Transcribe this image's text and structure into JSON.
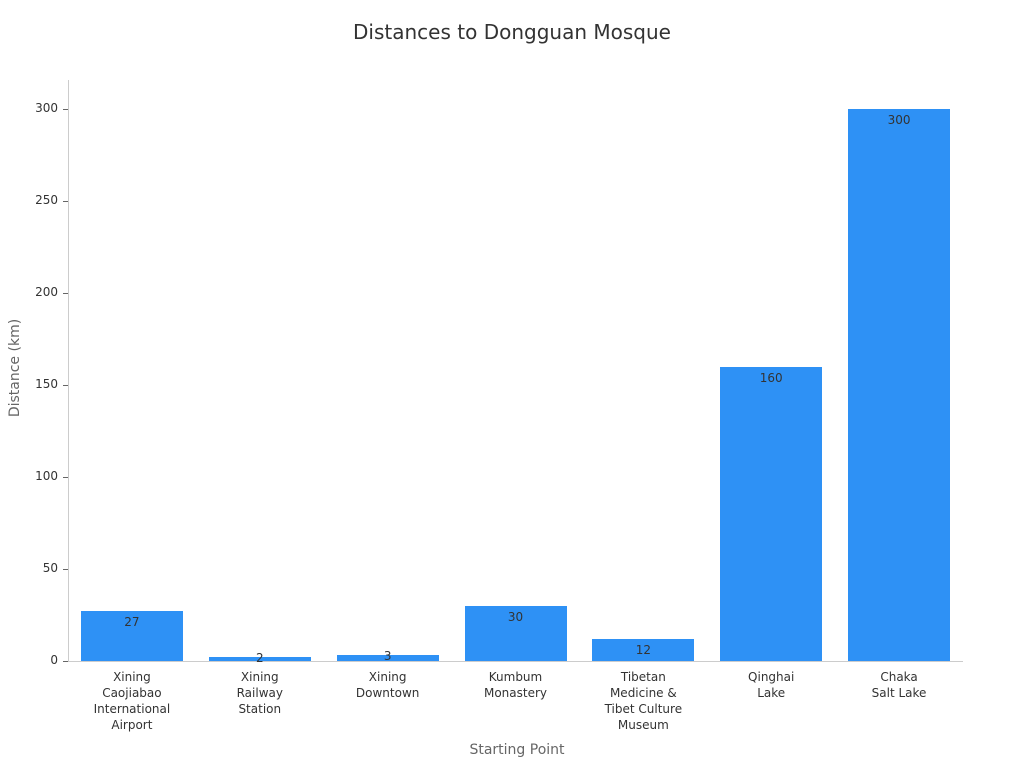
{
  "chart_data": {
    "type": "bar",
    "title": "Distances to Dongguan Mosque",
    "xlabel": "Starting Point",
    "ylabel": "Distance (km)",
    "categories": [
      "Xining Caojiabao International Airport",
      "Xining Railway Station",
      "Xining Downtown",
      "Kumbum Monastery",
      "Tibetan Medicine & Tibet Culture Museum",
      "Qinghai Lake",
      "Chaka Salt Lake"
    ],
    "category_lines": [
      [
        "Xining",
        "Caojiabao",
        "International",
        "Airport"
      ],
      [
        "Xining",
        "Railway",
        "Station"
      ],
      [
        "Xining",
        "Downtown"
      ],
      [
        "Kumbum",
        "Monastery"
      ],
      [
        "Tibetan",
        "Medicine &",
        "Tibet Culture",
        "Museum"
      ],
      [
        "Qinghai",
        "Lake"
      ],
      [
        "Chaka",
        "Salt Lake"
      ]
    ],
    "values": [
      27,
      2,
      3,
      30,
      12,
      160,
      300
    ],
    "ylim": [
      0,
      315
    ],
    "yticks": [
      0,
      50,
      100,
      150,
      200,
      250,
      300
    ],
    "grid": false,
    "bar_color": "#2e91f5"
  }
}
